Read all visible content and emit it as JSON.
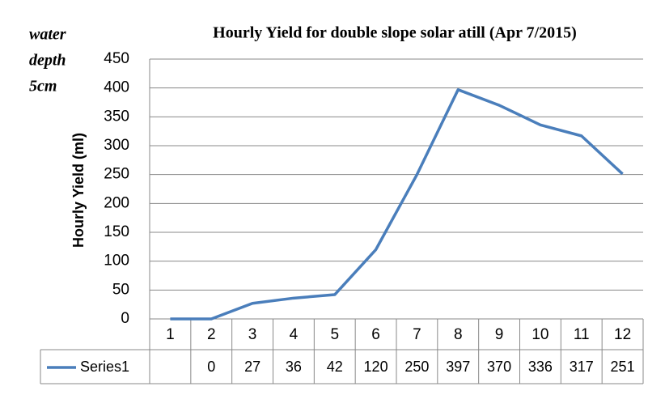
{
  "chart_data": {
    "type": "line",
    "title": "Hourly Yield  for double  slope solar atill (Apr  7/2015)",
    "annotation": [
      "water",
      "depth",
      "5cm"
    ],
    "y_label": "Hourly Yield (ml)",
    "categories": [
      "1",
      "2",
      "3",
      "4",
      "5",
      "6",
      "7",
      "8",
      "9",
      "10",
      "11",
      "12"
    ],
    "series": [
      {
        "name": "Series1",
        "color": "#4a7ebb",
        "values": [
          0,
          0,
          27,
          36,
          42,
          120,
          250,
          397,
          370,
          336,
          317,
          251
        ],
        "value_labels": [
          null,
          0,
          27,
          36,
          42,
          120,
          250,
          397,
          370,
          336,
          317,
          251
        ]
      }
    ],
    "ylim": [
      0,
      450
    ],
    "yticks": [
      0,
      50,
      100,
      150,
      200,
      250,
      300,
      350,
      400,
      450
    ],
    "grid": true,
    "data_table": true
  }
}
